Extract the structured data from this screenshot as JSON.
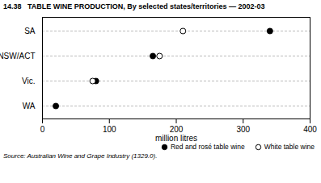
{
  "chart_data": {
    "type": "dot",
    "title": "14.38   TABLE WINE PRODUCTION, By selected states/territories — 2002-03",
    "categories": [
      "WA",
      "Vic.",
      "NSW/ACT",
      "SA"
    ],
    "series": [
      {
        "name": "Red and rosé table wine",
        "values": [
          20,
          80,
          165,
          340
        ],
        "color": "black",
        "marker": "circle"
      },
      {
        "name": "White table wine",
        "values": [
          null,
          75,
          175,
          210
        ],
        "color": "black",
        "marker": "circle-open"
      }
    ],
    "orientation": "horizontal",
    "xlabel": "million litres",
    "xlim": [
      0,
      400
    ],
    "xticks": [
      0,
      100,
      200,
      300,
      400
    ],
    "grid": "y",
    "legend": "lower right",
    "source": "Source: Australian Wine and Grape Industry (1329.0)."
  }
}
